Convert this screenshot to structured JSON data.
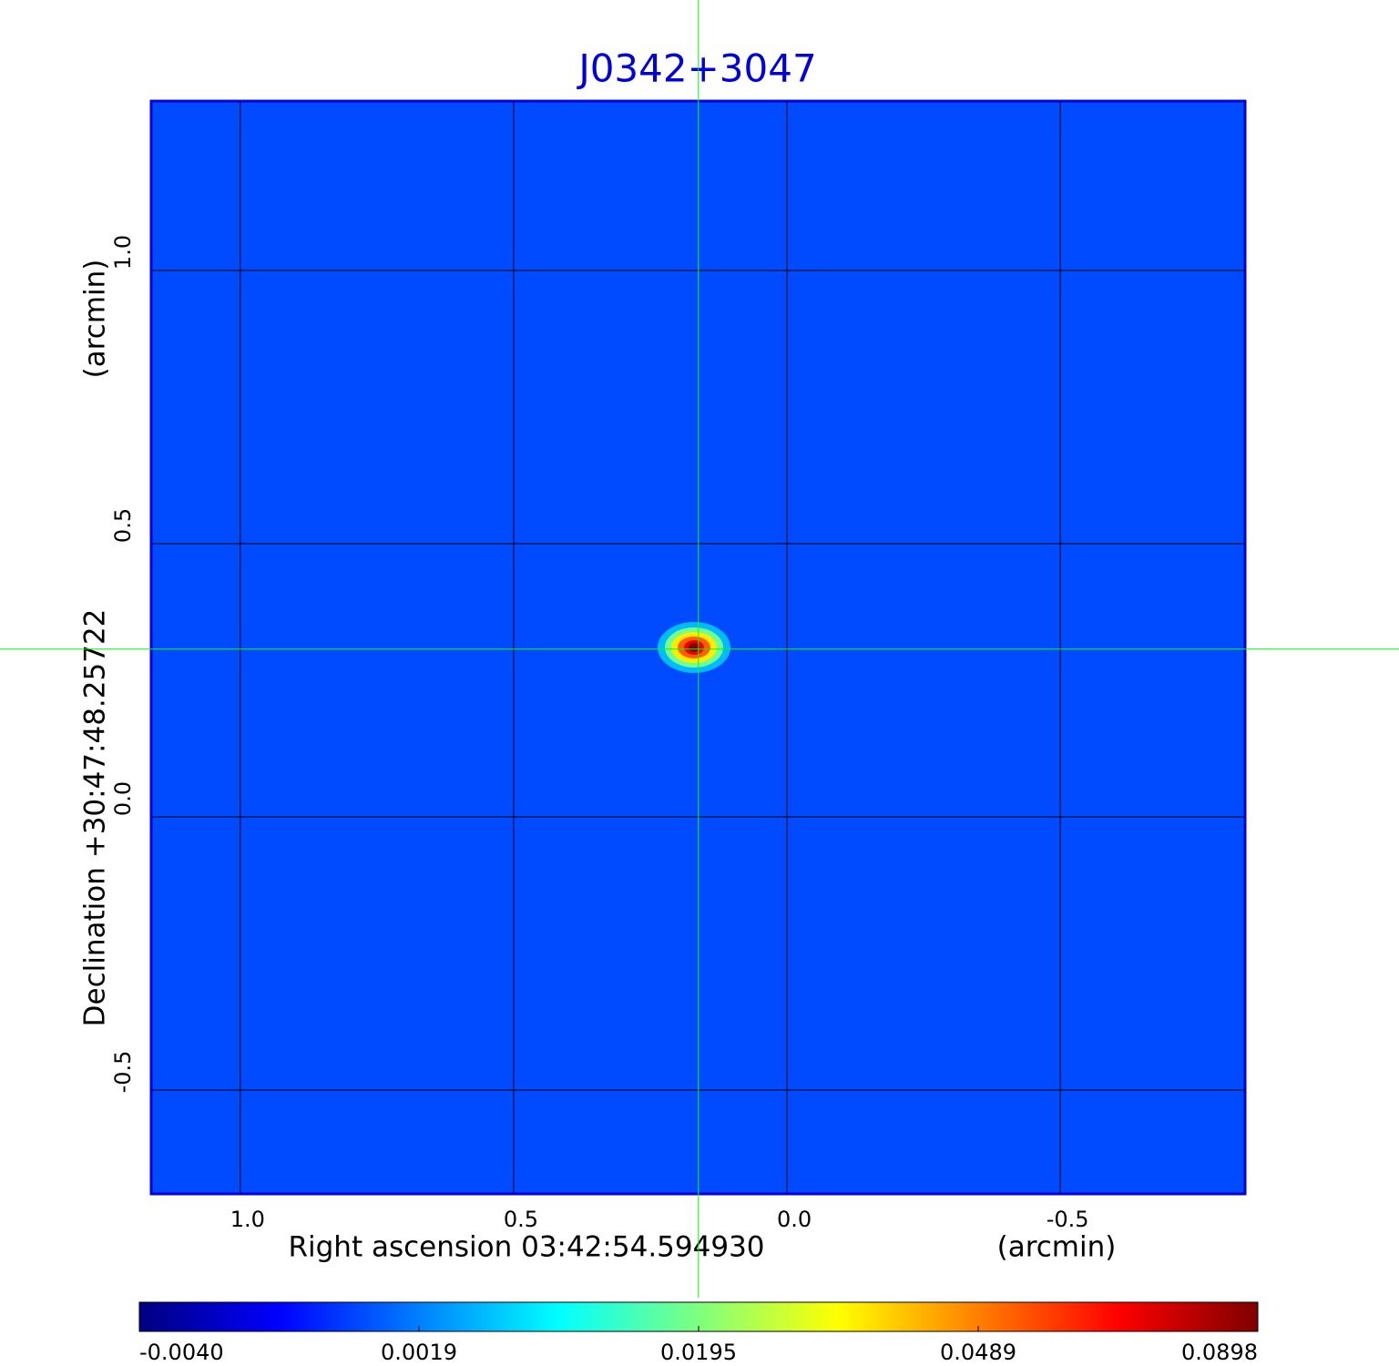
{
  "chart_data": {
    "type": "image",
    "title": "J0342+3047",
    "x_label": "Right ascension  03:42:54.594930",
    "x_unit": "(arcmin)",
    "y_label": "Declination  +30:47:48.25722",
    "y_unit": "(arcmin)",
    "xlim": [
      1.163,
      -0.838
    ],
    "ylim": [
      -0.69,
      1.31
    ],
    "xticks": [
      {
        "value": 1,
        "label": "1.0"
      },
      0.5,
      {
        "value": 0,
        "label": "0.0"
      },
      -0.5
    ],
    "yticks": [
      {
        "value": -0.5,
        "label": "-0.5"
      },
      {
        "value": 0,
        "label": "0.0"
      },
      0.5,
      {
        "value": 1,
        "label": "1.0"
      }
    ],
    "grid": true,
    "crosshair": {
      "x": 0.162,
      "y": 0.307,
      "color": "#00ff00"
    },
    "background": 0.0007,
    "source": {
      "x": 0.17,
      "y": 0.31,
      "value": 0.0898
    },
    "colormap": [
      "#00007f",
      "#0000ff",
      "#007fff",
      "#00ffff",
      "#7fff7f",
      "#ffff00",
      "#ff7f00",
      "#ff0000",
      "#7f0000"
    ],
    "colorbar_ticks": [
      {
        "value": -0.004,
        "label": "-0.0040"
      },
      {
        "value": 0.0019,
        "label": "0.0019"
      },
      {
        "value": 0.0195,
        "label": "0.0195"
      },
      {
        "value": 0.0489,
        "label": "0.0489"
      },
      {
        "value": 0.0898,
        "label": "0.0898"
      }
    ]
  }
}
